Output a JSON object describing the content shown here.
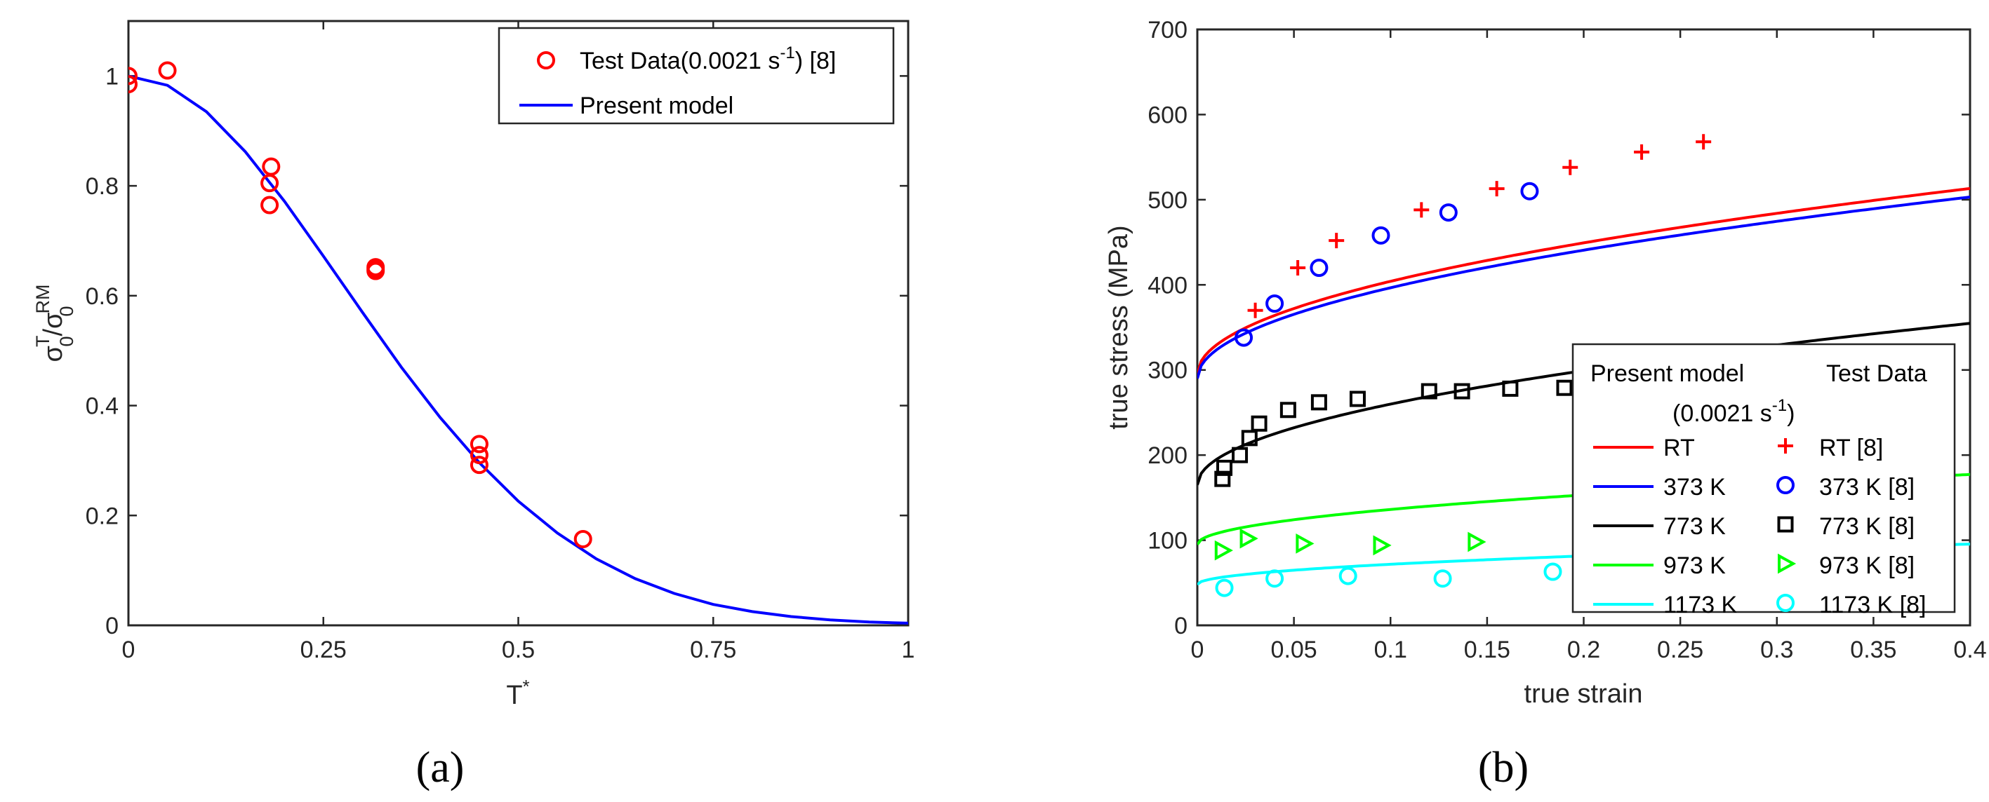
{
  "colors": {
    "red": "#ff0000",
    "blue": "#0000ff",
    "black": "#000000",
    "green": "#00ff00",
    "cyan": "#00ffff"
  },
  "chart_data": [
    {
      "panel": "(a)",
      "type": "scatter",
      "xlabel": "T*",
      "ylabel": "σ0T/σ0RM",
      "xlim": [
        0,
        1
      ],
      "ylim": [
        0,
        1.1
      ],
      "xticks": [
        0,
        0.25,
        0.5,
        0.75,
        1
      ],
      "xtick_labels": [
        "0",
        "0.25",
        "0.5",
        "0.75",
        "1"
      ],
      "yticks": [
        0,
        0.2,
        0.4,
        0.6,
        0.8,
        1
      ],
      "ytick_labels": [
        "0",
        "0.2",
        "0.4",
        "0.6",
        "0.8",
        "1"
      ],
      "legend_position": "top-right",
      "series": [
        {
          "name": "Test Data(0.0021 s-1) [8]",
          "legend": "Test Data(0.0021 s",
          "legend_sup": "-1",
          "legend_tail": ") [8]",
          "kind": "marker",
          "marker": "circle",
          "color": "#ff0000",
          "x": [
            0,
            0,
            0.05,
            0.183,
            0.181,
            0.181,
            0.317,
            0.317,
            0.317,
            0.45,
            0.45,
            0.45,
            0.583
          ],
          "y": [
            1.0,
            0.985,
            1.01,
            0.835,
            0.805,
            0.765,
            0.652,
            0.648,
            0.645,
            0.33,
            0.31,
            0.292,
            0.157
          ]
        },
        {
          "name": "Present model",
          "legend": "Present model",
          "kind": "line",
          "color": "#0000ff",
          "x": [
            0,
            0.05,
            0.1,
            0.15,
            0.2,
            0.25,
            0.3,
            0.35,
            0.4,
            0.45,
            0.5,
            0.55,
            0.6,
            0.65,
            0.7,
            0.75,
            0.8,
            0.85,
            0.9,
            0.95,
            1.0
          ],
          "y": [
            1.0,
            0.983,
            0.935,
            0.862,
            0.772,
            0.672,
            0.57,
            0.47,
            0.378,
            0.296,
            0.226,
            0.168,
            0.121,
            0.085,
            0.058,
            0.038,
            0.025,
            0.016,
            0.01,
            0.006,
            0.004
          ]
        }
      ]
    },
    {
      "panel": "(b)",
      "type": "line",
      "xlabel": "true strain",
      "ylabel": "true stress (MPa)",
      "xlim": [
        0,
        0.4
      ],
      "ylim": [
        0,
        700
      ],
      "xticks": [
        0,
        0.05,
        0.1,
        0.15,
        0.2,
        0.25,
        0.3,
        0.35,
        0.4
      ],
      "xtick_labels": [
        "0",
        "0.05",
        "0.1",
        "0.15",
        "0.2",
        "0.25",
        "0.3",
        "0.35",
        "0.4"
      ],
      "yticks": [
        0,
        100,
        200,
        300,
        400,
        500,
        600,
        700
      ],
      "ytick_labels": [
        "0",
        "100",
        "200",
        "300",
        "400",
        "500",
        "600",
        "700"
      ],
      "legend_position": "bottom-right",
      "legend_header": {
        "model": "Present model",
        "test": "Test Data",
        "rate": "(0.0021 s",
        "rate_sup": "-1",
        "rate_tail": ")"
      },
      "series": [
        {
          "name": "RT",
          "model_label": "RT",
          "test_label": "RT [8]",
          "color": "#ff0000",
          "marker": "plus",
          "model": {
            "sigma0": 295,
            "A": 345,
            "n": 0.5
          },
          "test_x": [
            0.03,
            0.052,
            0.072,
            0.116,
            0.155,
            0.193,
            0.23,
            0.262
          ],
          "test_y": [
            370,
            420,
            452,
            488,
            513,
            538,
            556,
            568
          ]
        },
        {
          "name": "373 K",
          "model_label": "373 K",
          "test_label": "373 K [8]",
          "color": "#0000ff",
          "marker": "circle",
          "model": {
            "sigma0": 290,
            "A": 337,
            "n": 0.5
          },
          "test_x": [
            0.024,
            0.04,
            0.063,
            0.095,
            0.13,
            0.172
          ],
          "test_y": [
            338,
            378,
            420,
            458,
            485,
            510
          ]
        },
        {
          "name": "773 K",
          "model_label": "773 K",
          "test_label": "773 K [8]",
          "color": "#000000",
          "marker": "square",
          "model": {
            "sigma0": 165,
            "A": 300,
            "n": 0.5
          },
          "test_x": [
            0.013,
            0.014,
            0.022,
            0.027,
            0.032,
            0.047,
            0.063,
            0.083,
            0.12,
            0.137,
            0.162,
            0.19
          ],
          "test_y": [
            172,
            185,
            200,
            220,
            237,
            253,
            262,
            266,
            275,
            275,
            278,
            279
          ]
        },
        {
          "name": "973 K",
          "model_label": "973 K",
          "test_label": "973 K [8]",
          "color": "#00ff00",
          "marker": "triangle-right",
          "model": {
            "sigma0": 95,
            "A": 130,
            "n": 0.5
          },
          "test_x": [
            0.013,
            0.026,
            0.055,
            0.095,
            0.144
          ],
          "test_y": [
            88,
            102,
            96,
            94,
            98
          ]
        },
        {
          "name": "1173 K",
          "model_label": "1173 K",
          "test_label": "1173 K [8]",
          "color": "#00ffff",
          "marker": "circle",
          "model": {
            "sigma0": 48,
            "A": 75,
            "n": 0.5
          },
          "test_x": [
            0.014,
            0.04,
            0.078,
            0.127,
            0.184
          ],
          "test_y": [
            44,
            55,
            58,
            55,
            63
          ]
        }
      ]
    }
  ]
}
